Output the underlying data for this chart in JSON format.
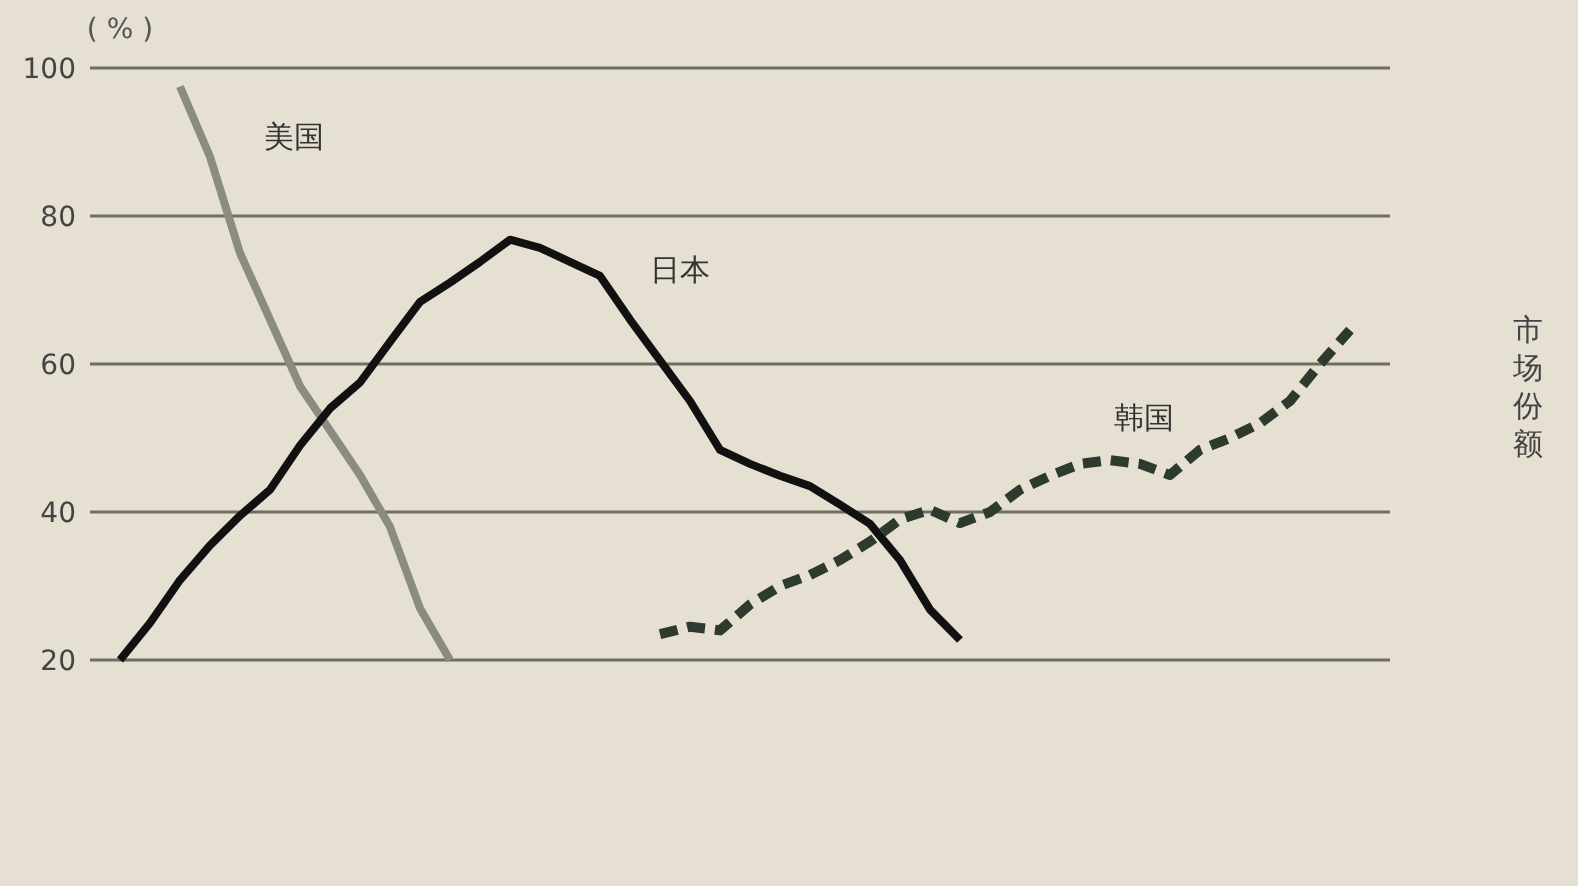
{
  "chart_data": {
    "type": "line",
    "ylabel": "( % )",
    "annotations": [
      "市场份额"
    ],
    "grid": "y",
    "tick_labels": "y",
    "ylim": [
      20,
      100
    ],
    "yticks": [
      20,
      40,
      60,
      80,
      100
    ],
    "categories": [
      null,
      null,
      null,
      null,
      null,
      null,
      null,
      null,
      null,
      null,
      null,
      null,
      null,
      null,
      null,
      null,
      null,
      null,
      null,
      null,
      null,
      null,
      null,
      null,
      null,
      null,
      null,
      null,
      null,
      null,
      null,
      null,
      null,
      null,
      null,
      null,
      null,
      null,
      null,
      null,
      null,
      null
    ],
    "series": [
      {
        "name": "美国",
        "color": "#8a8c82",
        "line_style": "solid",
        "values": [
          null,
          null,
          97.5,
          88,
          75,
          66,
          57,
          51,
          45,
          38,
          27,
          20,
          null,
          null,
          null,
          null,
          null,
          null,
          null,
          null,
          null,
          null,
          null,
          null,
          null,
          null,
          null,
          null,
          null,
          null,
          null,
          null,
          null,
          null,
          null,
          null,
          null,
          null,
          null,
          null,
          null,
          null
        ]
      },
      {
        "name": "日本",
        "color": "#111111",
        "line_style": "solid",
        "values": [
          20,
          25,
          30.8,
          35.5,
          39.5,
          43,
          49,
          54,
          57.5,
          63,
          68.4,
          71,
          73.8,
          76.8,
          75.7,
          73.8,
          71.9,
          66,
          60.5,
          55,
          48.4,
          46.5,
          44.9,
          43.5,
          41,
          38.4,
          33.5,
          26.8,
          22.7,
          null,
          null,
          null,
          null,
          null,
          null,
          null,
          null,
          null,
          null,
          null,
          null,
          null
        ]
      },
      {
        "name": "韩国",
        "color": "#2e3a2e",
        "line_style": "dashed",
        "values": [
          null,
          null,
          null,
          null,
          null,
          null,
          null,
          null,
          null,
          null,
          null,
          null,
          null,
          null,
          null,
          null,
          null,
          null,
          23.5,
          24.5,
          24,
          27.5,
          30,
          31.5,
          33.5,
          36,
          39,
          40.3,
          38.5,
          40,
          43,
          44.9,
          46.5,
          47,
          46.5,
          45,
          48.4,
          50,
          52,
          55,
          60,
          64.6
        ]
      }
    ]
  }
}
